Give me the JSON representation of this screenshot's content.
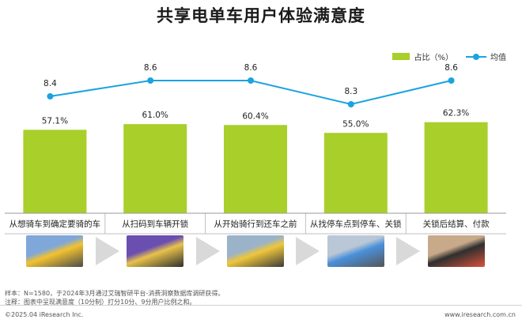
{
  "title": "共享电单车用户体验满意度",
  "chart_data": {
    "type": "bar",
    "categories": [
      "从想骑车到确定要骑的车",
      "从扫码到车辆开锁",
      "从开始骑行到还车之前",
      "从找停车点到停车、关锁",
      "关锁后结算、付款"
    ],
    "series": [
      {
        "name": "占比（%）",
        "type": "bar",
        "values": [
          57.1,
          61.0,
          60.4,
          55.0,
          62.3
        ],
        "labels": [
          "57.1%",
          "61.0%",
          "60.4%",
          "55.0%",
          "62.3%"
        ],
        "color": "#a8cf2a"
      },
      {
        "name": "均值",
        "type": "line",
        "values": [
          8.4,
          8.6,
          8.6,
          8.3,
          8.6
        ],
        "labels": [
          "8.4",
          "8.6",
          "8.6",
          "8.3",
          "8.6"
        ],
        "color": "#1aa3e0"
      }
    ],
    "legend_position": "top-right",
    "grid": false
  },
  "photos": [
    {
      "icon": "parked-bikes-photo",
      "colors": [
        "#7fa7d9",
        "#f2c230",
        "#4a4a4a"
      ]
    },
    {
      "icon": "phone-scan-photo",
      "colors": [
        "#6a4fb0",
        "#e8c24a",
        "#2d2d2d"
      ]
    },
    {
      "icon": "riding-bikes-photo",
      "colors": [
        "#9ab3c9",
        "#f0c63a",
        "#3a3a3a"
      ]
    },
    {
      "icon": "parking-phone-photo",
      "colors": [
        "#b9c7d6",
        "#4a90d9",
        "#555555"
      ]
    },
    {
      "icon": "payment-phone-photo",
      "colors": [
        "#c8a98a",
        "#2f2f2f",
        "#d9533a"
      ]
    }
  ],
  "footnotes": {
    "sample": "样本：N=1580，于2024年3月通过艾瑞智研平台-消费洞察数据库调研获得。",
    "note": "注释：图表中呈现满意度（10分制）打分10分、9分用户比例之和。"
  },
  "footer": {
    "left": "©2025.04 iResearch Inc.",
    "right": "www.iresearch.com.cn"
  }
}
